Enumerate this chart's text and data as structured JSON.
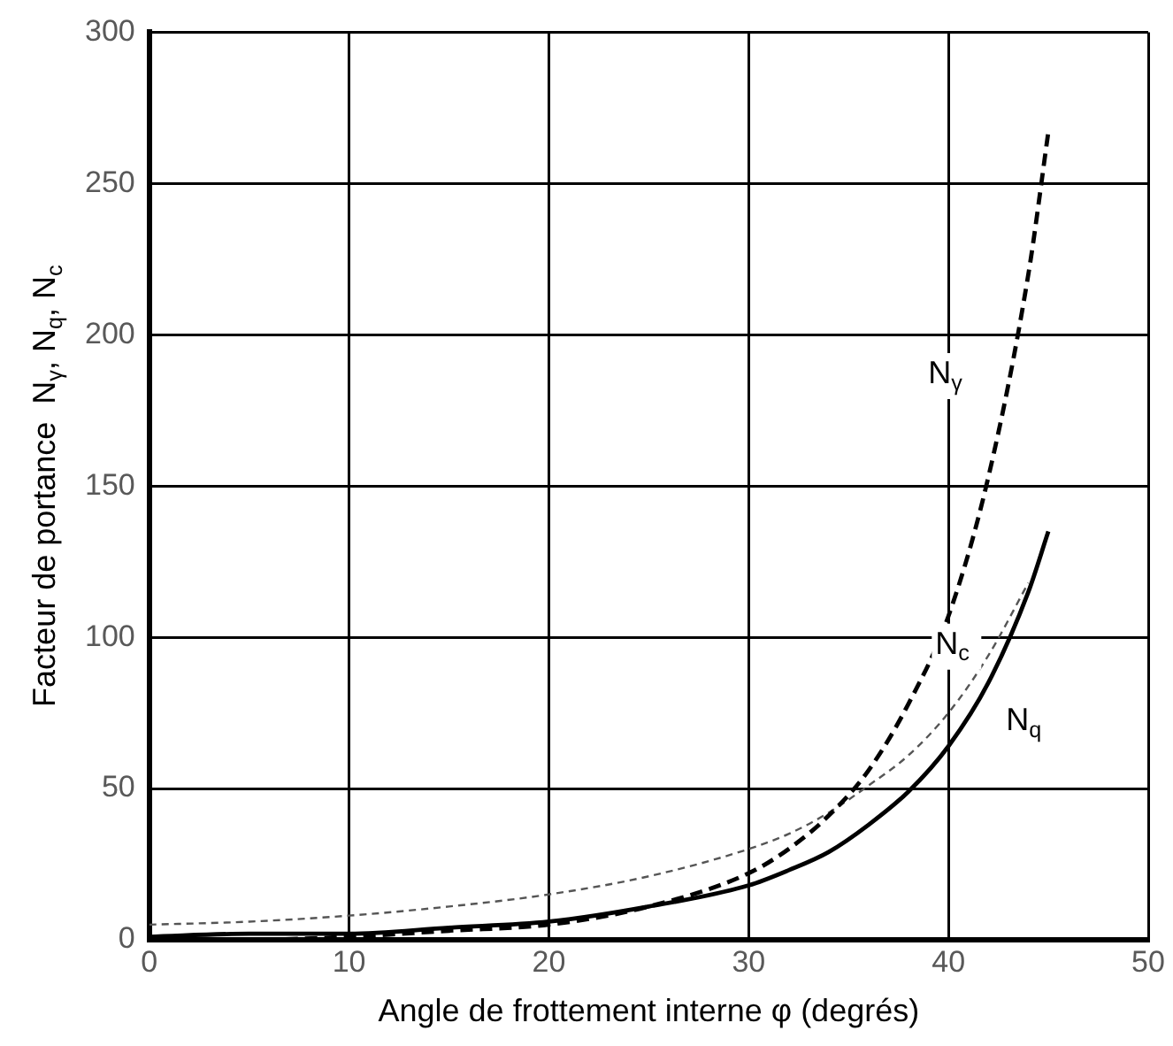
{
  "chart_data": {
    "type": "line",
    "xlabel": "Angle de frottement interne φ (degrés)",
    "ylabel": "Facteur de portance  N$_{γ}$, N$_{q}$, N$_{c}$",
    "xlim": [
      0,
      50
    ],
    "xticks": [
      0,
      10,
      20,
      30,
      40,
      50
    ],
    "ylim": [
      0,
      300
    ],
    "yticks": [
      0,
      50,
      100,
      150,
      200,
      250,
      300
    ],
    "grid": true,
    "legend": false,
    "marker": "none",
    "series": [
      {
        "name": "N$_{γ}$",
        "color": "#000000",
        "line_style": "dashed",
        "x": [
          0,
          5,
          10,
          15,
          20,
          25,
          30,
          32,
          34,
          36,
          38,
          40,
          42,
          44,
          45
        ],
        "values": [
          0,
          0,
          1,
          3,
          5,
          11,
          22,
          30,
          41,
          56,
          78,
          107,
          153,
          220,
          267
        ]
      },
      {
        "name": "N$_{q}$",
        "color": "#000000",
        "line_style": "solid",
        "x": [
          0,
          5,
          10,
          15,
          20,
          25,
          30,
          32,
          34,
          36,
          38,
          40,
          42,
          44,
          45
        ],
        "values": [
          1,
          2,
          2,
          4,
          6,
          11,
          18,
          23,
          29,
          38,
          49,
          64,
          85,
          115,
          135
        ]
      },
      {
        "name": "N$_{c}$",
        "color": "#555555",
        "line_style": "dotted",
        "x": [
          0,
          5,
          10,
          15,
          20,
          25,
          30,
          32,
          34,
          36,
          38,
          40,
          42,
          44
        ],
        "values": [
          5,
          6,
          8,
          11,
          15,
          21,
          30,
          35,
          42,
          51,
          61,
          75,
          94,
          118
        ]
      }
    ]
  }
}
